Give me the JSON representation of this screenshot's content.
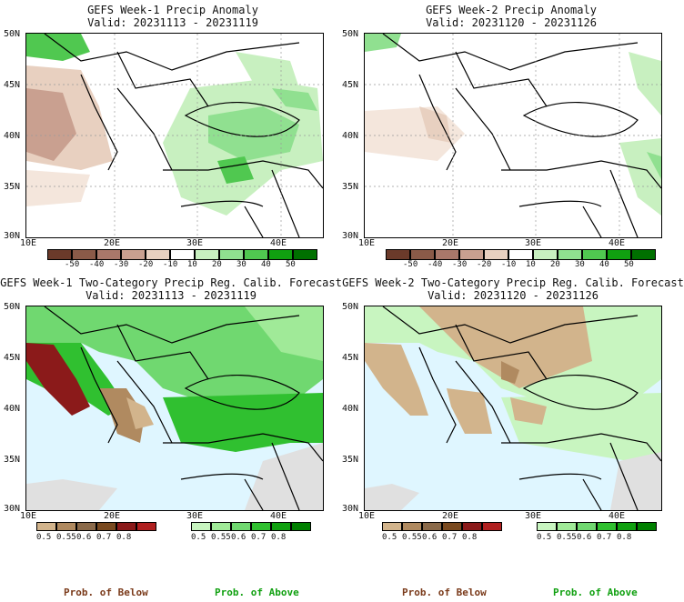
{
  "panels": [
    {
      "id": "p1",
      "title": "GEFS Week-1 Precip Anomaly",
      "valid": "Valid: 20231113 - 20231119",
      "lat_labels": [
        "50N",
        "45N",
        "40N",
        "35N",
        "30N"
      ],
      "lon_labels": [
        "10E",
        "20E",
        "30E",
        "40E"
      ]
    },
    {
      "id": "p2",
      "title": "GEFS Week-2 Precip Anomaly",
      "valid": "Valid: 20231120 - 20231126",
      "lat_labels": [
        "50N",
        "45N",
        "40N",
        "35N",
        "30N"
      ],
      "lon_labels": [
        "10E",
        "20E",
        "30E",
        "40E"
      ]
    },
    {
      "id": "p3",
      "title": "GEFS Week-1 Two-Category Precip Reg. Calib. Forecast",
      "valid": "Valid: 20231113 - 20231119",
      "lat_labels": [
        "50N",
        "45N",
        "40N",
        "35N",
        "30N"
      ],
      "lon_labels": [
        "10E",
        "20E",
        "30E",
        "40E"
      ]
    },
    {
      "id": "p4",
      "title": "GEFS Week-2 Two-Category Precip Reg. Calib. Forecast",
      "valid": "Valid: 20231120 - 20231126",
      "lat_labels": [
        "50N",
        "45N",
        "40N",
        "35N",
        "30N"
      ],
      "lon_labels": [
        "10E",
        "20E",
        "30E",
        "40E"
      ]
    }
  ],
  "anomaly_colorbar": {
    "labels": [
      "-50",
      "-40",
      "-30",
      "-20",
      "-10",
      "10",
      "20",
      "30",
      "40",
      "50"
    ],
    "colors": [
      "#6b3a2a",
      "#8a5a48",
      "#a9786a",
      "#c9a090",
      "#e8d0c0",
      "#ffffff",
      "#c8f0c0",
      "#90e090",
      "#50c850",
      "#10a010",
      "#007000"
    ]
  },
  "below_colorbar": {
    "labels": [
      "0.5",
      "0.55",
      "0.6",
      "0.7",
      "0.8"
    ],
    "colors": [
      "#d2b48c",
      "#b08a60",
      "#8b6a4a",
      "#7a4a20",
      "#8b1a1a",
      "#b02020"
    ]
  },
  "above_colorbar": {
    "labels": [
      "0.5",
      "0.55",
      "0.6",
      "0.7",
      "0.8"
    ],
    "colors": [
      "#c8f5c0",
      "#a0ea98",
      "#70d870",
      "#30c030",
      "#10a010",
      "#008000"
    ]
  },
  "prob_below": "Prob. of Below",
  "prob_above": "Prob. of Above",
  "colors": {
    "sea": "#dff6ff",
    "below_text": "#7a3a1a",
    "above_text": "#10a010",
    "no_data": "#e0e0e0"
  }
}
